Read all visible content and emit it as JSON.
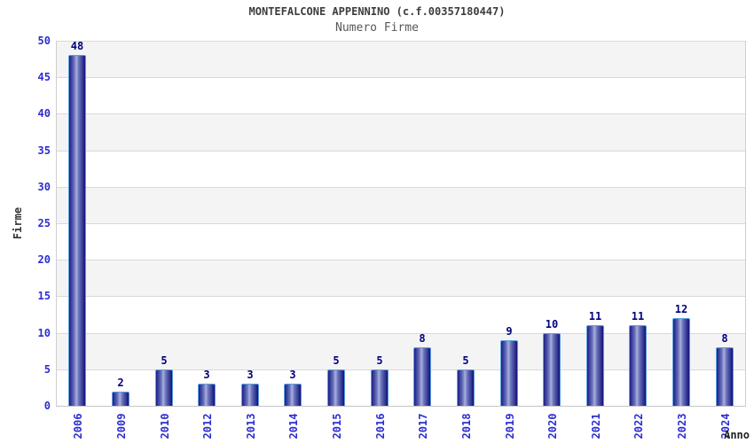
{
  "chart_data": {
    "type": "bar",
    "title": "MONTEFALCONE APPENNINO (c.f.00357180447)",
    "subtitle": "Numero Firme",
    "xlabel": "Anno",
    "ylabel": "Firme",
    "categories": [
      "2006",
      "2009",
      "2010",
      "2012",
      "2013",
      "2014",
      "2015",
      "2016",
      "2017",
      "2018",
      "2019",
      "2020",
      "2021",
      "2022",
      "2023",
      "2024"
    ],
    "values": [
      48,
      2,
      5,
      3,
      3,
      3,
      5,
      5,
      8,
      5,
      9,
      10,
      11,
      11,
      12,
      8
    ],
    "ylim": [
      0,
      50
    ],
    "ytick_step": 5,
    "grid": true,
    "legend_position": "none",
    "colors": {
      "bar_edge_dark": "#1d1d88",
      "bar_mid": "#6b74bb",
      "bar_highlight": "#aab0de",
      "bar_dark_right": "#12127a",
      "bar_border": "#5aa0e0",
      "tick_label": "#2d2dd1",
      "value_label": "#00007d",
      "band_gray": "#f4f4f4",
      "band_white": "#ffffff",
      "gridline": "#d9d9d9",
      "title": "#3d3d3d",
      "subtitle": "#585858",
      "axis_title": "#333333"
    }
  }
}
